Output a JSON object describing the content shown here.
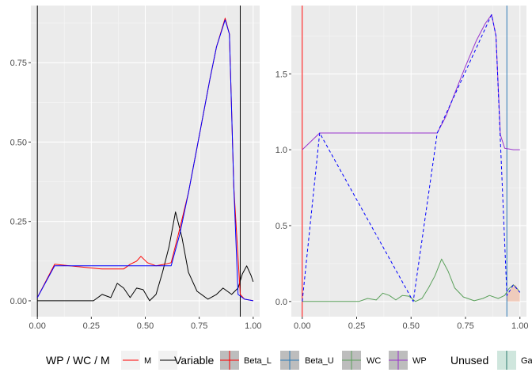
{
  "charts": [
    {
      "type": "line",
      "xlim": [
        -0.03,
        1.03
      ],
      "ylim": [
        -0.05,
        0.93
      ],
      "x_ticks": [
        {
          "value": 0,
          "label": "0.00"
        },
        {
          "value": 0.25,
          "label": "0.25"
        },
        {
          "value": 0.5,
          "label": "0.50"
        },
        {
          "value": 0.75,
          "label": "0.75"
        },
        {
          "value": 1,
          "label": "1.00"
        }
      ],
      "y_ticks": [
        {
          "value": 0,
          "label": "0.00"
        },
        {
          "value": 0.25,
          "label": "0.25"
        },
        {
          "value": 0.5,
          "label": "0.50"
        },
        {
          "value": 0.75,
          "label": "0.75"
        }
      ],
      "vlines": [
        {
          "x": 0.0,
          "color": "#000000"
        },
        {
          "x": 0.94,
          "color": "#000000"
        }
      ],
      "series": [
        {
          "color": "#000000",
          "dash": "",
          "points": [
            [
              0,
              0
            ],
            [
              0.26,
              0.0
            ],
            [
              0.3,
              0.02
            ],
            [
              0.34,
              0.01
            ],
            [
              0.37,
              0.055
            ],
            [
              0.4,
              0.04
            ],
            [
              0.43,
              0.01
            ],
            [
              0.46,
              0.04
            ],
            [
              0.49,
              0.035
            ],
            [
              0.52,
              0.0
            ],
            [
              0.55,
              0.02
            ],
            [
              0.58,
              0.09
            ],
            [
              0.61,
              0.17
            ],
            [
              0.64,
              0.28
            ],
            [
              0.67,
              0.2
            ],
            [
              0.7,
              0.09
            ],
            [
              0.74,
              0.03
            ],
            [
              0.79,
              0.005
            ],
            [
              0.83,
              0.02
            ],
            [
              0.86,
              0.04
            ],
            [
              0.9,
              0.02
            ],
            [
              0.93,
              0.04
            ],
            [
              0.95,
              0.085
            ],
            [
              0.97,
              0.11
            ],
            [
              0.99,
              0.08
            ],
            [
              1.0,
              0.06
            ]
          ]
        },
        {
          "color": "#ff0000",
          "dash": "",
          "points": [
            [
              0,
              0.01
            ],
            [
              0.08,
              0.115
            ],
            [
              0.15,
              0.11
            ],
            [
              0.3,
              0.1
            ],
            [
              0.4,
              0.1
            ],
            [
              0.43,
              0.115
            ],
            [
              0.46,
              0.125
            ],
            [
              0.48,
              0.14
            ],
            [
              0.51,
              0.12
            ],
            [
              0.55,
              0.11
            ],
            [
              0.59,
              0.115
            ],
            [
              0.62,
              0.12
            ],
            [
              0.65,
              0.2
            ],
            [
              0.7,
              0.34
            ],
            [
              0.75,
              0.52
            ],
            [
              0.8,
              0.7
            ],
            [
              0.83,
              0.8
            ],
            [
              0.87,
              0.89
            ],
            [
              0.89,
              0.84
            ],
            [
              0.91,
              0.36
            ],
            [
              0.94,
              0.02
            ],
            [
              0.96,
              0.005
            ],
            [
              1.0,
              0.0
            ]
          ]
        },
        {
          "color": "#0000ff",
          "dash": "",
          "points": [
            [
              0,
              0.01
            ],
            [
              0.08,
              0.11
            ],
            [
              0.62,
              0.11
            ],
            [
              0.66,
              0.21
            ],
            [
              0.7,
              0.34
            ],
            [
              0.75,
              0.52
            ],
            [
              0.8,
              0.7
            ],
            [
              0.83,
              0.8
            ],
            [
              0.87,
              0.885
            ],
            [
              0.89,
              0.84
            ],
            [
              0.91,
              0.36
            ],
            [
              0.93,
              0.02
            ],
            [
              0.96,
              0.005
            ],
            [
              1.0,
              0.0
            ]
          ]
        }
      ]
    },
    {
      "type": "line",
      "xlim": [
        -0.05,
        1.03
      ],
      "ylim": [
        -0.1,
        1.95
      ],
      "x_ticks": [
        {
          "value": 0,
          "label": "0.00"
        },
        {
          "value": 0.25,
          "label": "0.25"
        },
        {
          "value": 0.5,
          "label": "0.50"
        },
        {
          "value": 0.75,
          "label": "0.75"
        },
        {
          "value": 1,
          "label": "1.00"
        }
      ],
      "y_ticks": [
        {
          "value": 0,
          "label": "0.0"
        },
        {
          "value": 0.5,
          "label": "0.5"
        },
        {
          "value": 1,
          "label": "1.0"
        },
        {
          "value": 1.5,
          "label": "1.5"
        }
      ],
      "shade": {
        "x": [
          0.94,
          0.96,
          0.98,
          1.0
        ],
        "y": [
          0.04,
          0.09,
          0.11,
          0.06
        ],
        "color": "#f4a582"
      },
      "vlines": [
        {
          "x": 0.0,
          "color": "#ff0000"
        },
        {
          "x": 0.94,
          "color": "#2c7bb6"
        }
      ],
      "series": [
        {
          "color": "#5aa05a",
          "dash": "",
          "points": [
            [
              0,
              0
            ],
            [
              0.26,
              0.0
            ],
            [
              0.3,
              0.02
            ],
            [
              0.34,
              0.01
            ],
            [
              0.37,
              0.055
            ],
            [
              0.4,
              0.04
            ],
            [
              0.43,
              0.01
            ],
            [
              0.46,
              0.04
            ],
            [
              0.49,
              0.035
            ],
            [
              0.52,
              0.0
            ],
            [
              0.55,
              0.02
            ],
            [
              0.58,
              0.09
            ],
            [
              0.61,
              0.17
            ],
            [
              0.64,
              0.28
            ],
            [
              0.67,
              0.2
            ],
            [
              0.7,
              0.09
            ],
            [
              0.74,
              0.03
            ],
            [
              0.79,
              0.005
            ],
            [
              0.83,
              0.02
            ],
            [
              0.86,
              0.04
            ],
            [
              0.9,
              0.02
            ],
            [
              0.93,
              0.04
            ],
            [
              0.95,
              0.085
            ],
            [
              0.97,
              0.11
            ],
            [
              0.99,
              0.08
            ],
            [
              1.0,
              0.06
            ]
          ]
        },
        {
          "color": "#9933cc",
          "dash": "",
          "points": [
            [
              0,
              1.0
            ],
            [
              0.08,
              1.11
            ],
            [
              0.62,
              1.11
            ],
            [
              0.66,
              1.22
            ],
            [
              0.7,
              1.37
            ],
            [
              0.75,
              1.55
            ],
            [
              0.8,
              1.72
            ],
            [
              0.84,
              1.83
            ],
            [
              0.87,
              1.89
            ],
            [
              0.89,
              1.75
            ],
            [
              0.91,
              1.1
            ],
            [
              0.93,
              1.01
            ],
            [
              0.97,
              1.0
            ],
            [
              1.0,
              1.0
            ]
          ]
        },
        {
          "color": "#0000ff",
          "dash": "4,3",
          "points": [
            [
              0,
              0.0
            ],
            [
              0.08,
              1.11
            ],
            [
              0.51,
              0.0
            ],
            [
              0.62,
              1.11
            ],
            [
              0.87,
              1.89
            ],
            [
              0.89,
              1.75
            ],
            [
              0.9,
              1.4
            ],
            [
              0.94,
              0.04
            ],
            [
              0.97,
              0.11
            ],
            [
              1.0,
              0.06
            ]
          ]
        }
      ]
    }
  ],
  "legend": [
    {
      "title": "WP / WC / M",
      "keys": [
        {
          "label": "M",
          "color": "#ff0000",
          "fill": "#f2f2f2"
        }
      ]
    },
    {
      "title": "Variable",
      "keys": [
        {
          "label": "Beta_L",
          "color": "#ff0000",
          "fill": "#bdbdbd"
        },
        {
          "label": "Beta_U",
          "color": "#2c7bb6",
          "fill": "#bdbdbd"
        },
        {
          "label": "WC",
          "color": "#5aa05a",
          "fill": "#bdbdbd"
        },
        {
          "label": "WP",
          "color": "#9933cc",
          "fill": "#bdbdbd"
        }
      ]
    },
    {
      "title": "Unused",
      "keys": [
        {
          "label": "Ga",
          "color": "#2c7b6f",
          "fill": "#cfe6dd"
        }
      ]
    }
  ]
}
